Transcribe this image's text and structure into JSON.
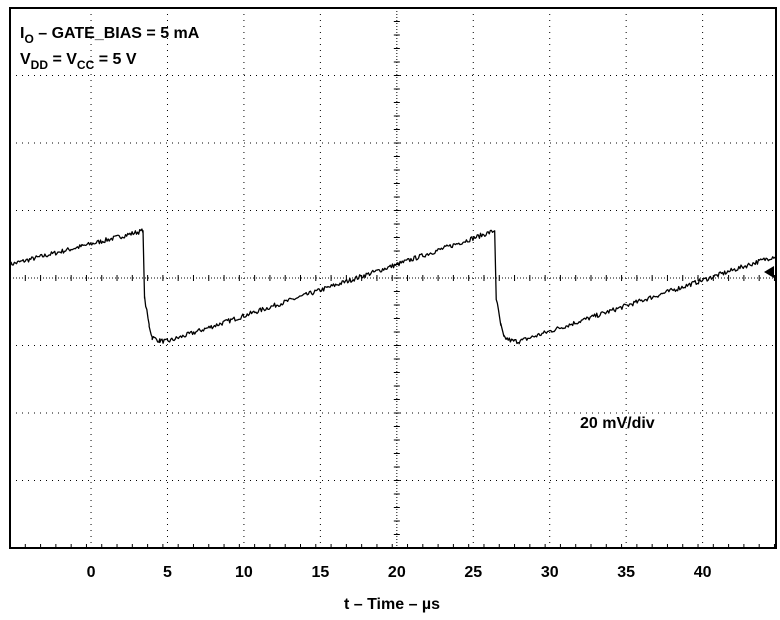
{
  "chart_data": {
    "type": "line",
    "annotations": {
      "line1": {
        "sym": "I",
        "sub": "O",
        "rest": " – GATE_BIAS = 5 mA"
      },
      "line2": {
        "sym1": "V",
        "sub1": "DD",
        "mid": " = V",
        "sub2": "CC",
        "rest": " = 5 V"
      }
    },
    "scale_label": "20 mV/div",
    "xlabel": "t – Time – µs",
    "xlim": [
      -5.3,
      44.8
    ],
    "ylim": [
      -4,
      4
    ],
    "x_ticks": [
      0,
      5,
      10,
      15,
      20,
      25,
      30,
      35,
      40
    ],
    "x_tick_labels": [
      "0",
      "5",
      "10",
      "15",
      "20",
      "25",
      "30",
      "35",
      "40"
    ],
    "grid": "dotted",
    "trigger_marker": "right-edge",
    "colors": {
      "trace": "#000000",
      "grid": "#000000",
      "background": "#ffffff"
    },
    "series": [
      {
        "values_unit": "div",
        "points": [
          [
            -5.3,
            0.2
          ],
          [
            3.4,
            0.7
          ],
          [
            3.5,
            -0.3
          ],
          [
            3.8,
            -0.7
          ],
          [
            4.0,
            -0.88
          ],
          [
            4.5,
            -0.93
          ],
          [
            5.0,
            -0.94
          ],
          [
            20.0,
            0.2
          ],
          [
            26.4,
            0.7
          ],
          [
            26.5,
            -0.3
          ],
          [
            26.8,
            -0.7
          ],
          [
            27.0,
            -0.88
          ],
          [
            27.5,
            -0.93
          ],
          [
            28.0,
            -0.94
          ],
          [
            44.8,
            0.33
          ]
        ]
      }
    ]
  }
}
